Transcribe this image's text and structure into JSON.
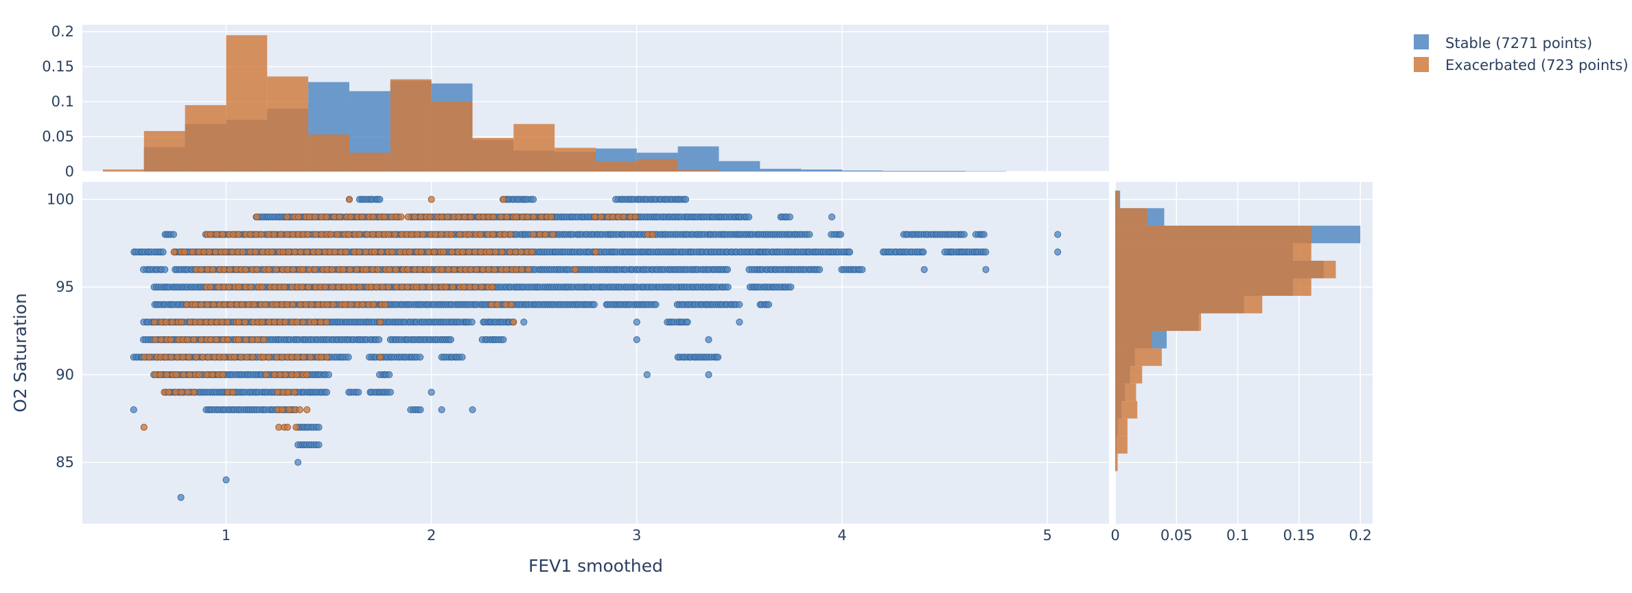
{
  "chart_data": {
    "type": "scatter",
    "xlabel": "FEV1 smoothed",
    "ylabel": "O2 Saturation",
    "x_range": [
      0.3,
      5.3
    ],
    "y_range": [
      81.5,
      101
    ],
    "x_ticks": [
      1,
      2,
      3,
      4,
      5
    ],
    "y_ticks": [
      85,
      90,
      95,
      100
    ],
    "grid": true,
    "legend_position": "top-right",
    "colors": {
      "plot_bg": "#e5ecf6",
      "grid": "#ffffff",
      "stable": "#4f86c0",
      "exacerbated": "#cf7a3d",
      "overlap": "#a0694b"
    },
    "series": [
      {
        "name": "Stable (7271 points)",
        "color": "#4f86c0",
        "row_ranges": [
          {
            "y": 100,
            "segments": [
              [
                1.6,
                1.6
              ],
              [
                1.65,
                1.75
              ],
              [
                2.35,
                2.5
              ],
              [
                2.9,
                3.25
              ]
            ]
          },
          {
            "y": 99,
            "segments": [
              [
                1.15,
                1.85
              ],
              [
                1.9,
                3.5
              ],
              [
                3.5,
                3.55
              ],
              [
                3.7,
                3.75
              ],
              [
                3.95,
                3.95
              ]
            ]
          },
          {
            "y": 98,
            "segments": [
              [
                0.7,
                0.75
              ],
              [
                0.9,
                3.5
              ],
              [
                3.5,
                3.85
              ],
              [
                3.95,
                4.0
              ],
              [
                4.3,
                4.6
              ],
              [
                4.65,
                4.7
              ],
              [
                5.05,
                5.05
              ]
            ]
          },
          {
            "y": 97,
            "segments": [
              [
                0.55,
                0.7
              ],
              [
                0.75,
                3.6
              ],
              [
                3.6,
                4.05
              ],
              [
                4.2,
                4.4
              ],
              [
                4.5,
                4.7
              ],
              [
                5.05,
                5.05
              ]
            ]
          },
          {
            "y": 96,
            "segments": [
              [
                0.6,
                0.7
              ],
              [
                0.75,
                3.45
              ],
              [
                3.55,
                3.9
              ],
              [
                4.0,
                4.1
              ],
              [
                4.4,
                4.4
              ],
              [
                4.7,
                4.7
              ]
            ]
          },
          {
            "y": 95,
            "segments": [
              [
                0.65,
                3.45
              ],
              [
                3.55,
                3.75
              ]
            ]
          },
          {
            "y": 94,
            "segments": [
              [
                0.65,
                2.8
              ],
              [
                2.85,
                3.1
              ],
              [
                3.2,
                3.5
              ],
              [
                3.6,
                3.65
              ]
            ]
          },
          {
            "y": 93,
            "segments": [
              [
                0.6,
                2.2
              ],
              [
                2.25,
                2.4
              ],
              [
                2.45,
                2.45
              ],
              [
                3.0,
                3.0
              ],
              [
                3.15,
                3.25
              ],
              [
                3.5,
                3.5
              ]
            ]
          },
          {
            "y": 92,
            "segments": [
              [
                0.6,
                1.75
              ],
              [
                1.8,
                2.1
              ],
              [
                2.25,
                2.35
              ],
              [
                3.0,
                3.0
              ],
              [
                3.35,
                3.35
              ]
            ]
          },
          {
            "y": 91,
            "segments": [
              [
                0.55,
                1.6
              ],
              [
                1.7,
                1.95
              ],
              [
                2.05,
                2.15
              ],
              [
                3.2,
                3.4
              ]
            ]
          },
          {
            "y": 90,
            "segments": [
              [
                0.65,
                1.5
              ],
              [
                1.75,
                1.8
              ],
              [
                3.05,
                3.05
              ],
              [
                3.35,
                3.35
              ]
            ]
          },
          {
            "y": 89,
            "segments": [
              [
                0.7,
                1.5
              ],
              [
                1.6,
                1.65
              ],
              [
                1.7,
                1.8
              ],
              [
                2.0,
                2.0
              ]
            ]
          },
          {
            "y": 88,
            "segments": [
              [
                0.55,
                0.55
              ],
              [
                0.9,
                1.35
              ],
              [
                1.9,
                1.95
              ],
              [
                2.05,
                2.05
              ],
              [
                2.2,
                2.2
              ]
            ]
          },
          {
            "y": 87,
            "segments": [
              [
                1.35,
                1.45
              ]
            ]
          },
          {
            "y": 86,
            "segments": [
              [
                1.35,
                1.45
              ]
            ]
          },
          {
            "y": 85,
            "segments": [
              [
                1.35,
                1.35
              ]
            ]
          },
          {
            "y": 84,
            "segments": [
              [
                1.0,
                1.0
              ]
            ]
          },
          {
            "y": 83,
            "segments": [
              [
                0.78,
                0.78
              ]
            ]
          }
        ],
        "x_hist": {
          "bin_edges": [
            0.4,
            0.6,
            0.8,
            1.0,
            1.2,
            1.4,
            1.6,
            1.8,
            2.0,
            2.2,
            2.4,
            2.6,
            2.8,
            3.0,
            3.2,
            3.4,
            3.6,
            3.8,
            4.0,
            4.2,
            4.4,
            4.6,
            4.8
          ],
          "values": [
            0,
            0.035,
            0.068,
            0.074,
            0.09,
            0.128,
            0.115,
            0.13,
            0.126,
            0.045,
            0.03,
            0.028,
            0.033,
            0.027,
            0.036,
            0.015,
            0.004,
            0.003,
            0.0015,
            0.001,
            0.001,
            0.0005
          ]
        },
        "y_hist": {
          "levels": [
            100,
            99,
            98,
            97,
            96,
            95,
            94,
            93,
            92,
            91,
            90,
            89,
            88,
            87,
            86,
            85
          ],
          "values": [
            0.004,
            0.04,
            0.2,
            0.145,
            0.17,
            0.145,
            0.105,
            0.068,
            0.042,
            0.016,
            0.012,
            0.008,
            0.005,
            0.002,
            0.001,
            0.0005
          ]
        }
      },
      {
        "name": "Exacerbated (723 points)",
        "color": "#cf7a3d",
        "row_ranges": [
          {
            "y": 100,
            "segments": [
              [
                1.6,
                1.6
              ],
              [
                2.0,
                2.0
              ],
              [
                2.35,
                2.35
              ]
            ]
          },
          {
            "y": 99,
            "segments": [
              [
                1.15,
                1.15
              ],
              [
                1.3,
                2.6
              ],
              [
                2.8,
                3.0
              ]
            ]
          },
          {
            "y": 98,
            "segments": [
              [
                0.9,
                2.4
              ],
              [
                2.5,
                2.6
              ],
              [
                3.05,
                3.1
              ]
            ]
          },
          {
            "y": 97,
            "segments": [
              [
                0.75,
                2.5
              ],
              [
                2.8,
                2.8
              ]
            ]
          },
          {
            "y": 96,
            "segments": [
              [
                0.85,
                2.5
              ],
              [
                2.7,
                2.7
              ]
            ]
          },
          {
            "y": 95,
            "segments": [
              [
                0.9,
                2.3
              ]
            ]
          },
          {
            "y": 94,
            "segments": [
              [
                0.8,
                1.8
              ],
              [
                2.3,
                2.4
              ]
            ]
          },
          {
            "y": 93,
            "segments": [
              [
                0.65,
                1.5
              ],
              [
                1.75,
                1.75
              ],
              [
                2.4,
                2.4
              ]
            ]
          },
          {
            "y": 92,
            "segments": [
              [
                0.65,
                1.2
              ]
            ]
          },
          {
            "y": 91,
            "segments": [
              [
                0.6,
                1.5
              ],
              [
                1.75,
                1.75
              ]
            ]
          },
          {
            "y": 90,
            "segments": [
              [
                0.65,
                1.0
              ],
              [
                1.2,
                1.4
              ]
            ]
          },
          {
            "y": 89,
            "segments": [
              [
                0.7,
                0.85
              ],
              [
                1.0,
                1.05
              ],
              [
                1.25,
                1.35
              ]
            ]
          },
          {
            "y": 88,
            "segments": [
              [
                1.25,
                1.4
              ]
            ]
          },
          {
            "y": 87,
            "segments": [
              [
                0.6,
                0.6
              ],
              [
                1.25,
                1.35
              ]
            ]
          }
        ],
        "x_hist": {
          "bin_edges": [
            0.4,
            0.6,
            0.8,
            1.0,
            1.2,
            1.4,
            1.6,
            1.8,
            2.0,
            2.2,
            2.4,
            2.6,
            2.8,
            3.0,
            3.2,
            3.4,
            3.6,
            3.8,
            4.0,
            4.2,
            4.4,
            4.6,
            4.8
          ],
          "values": [
            0.003,
            0.058,
            0.095,
            0.195,
            0.136,
            0.053,
            0.027,
            0.132,
            0.1,
            0.048,
            0.068,
            0.034,
            0.014,
            0.018,
            0.002,
            0,
            0,
            0,
            0,
            0,
            0,
            0
          ]
        },
        "y_hist": {
          "levels": [
            100,
            99,
            98,
            97,
            96,
            95,
            94,
            93,
            92,
            91,
            90,
            89,
            88,
            87,
            86,
            85
          ],
          "values": [
            0.003,
            0.026,
            0.16,
            0.16,
            0.18,
            0.16,
            0.12,
            0.07,
            0.03,
            0.038,
            0.022,
            0.017,
            0.018,
            0.01,
            0.01,
            0.002
          ]
        }
      }
    ]
  }
}
